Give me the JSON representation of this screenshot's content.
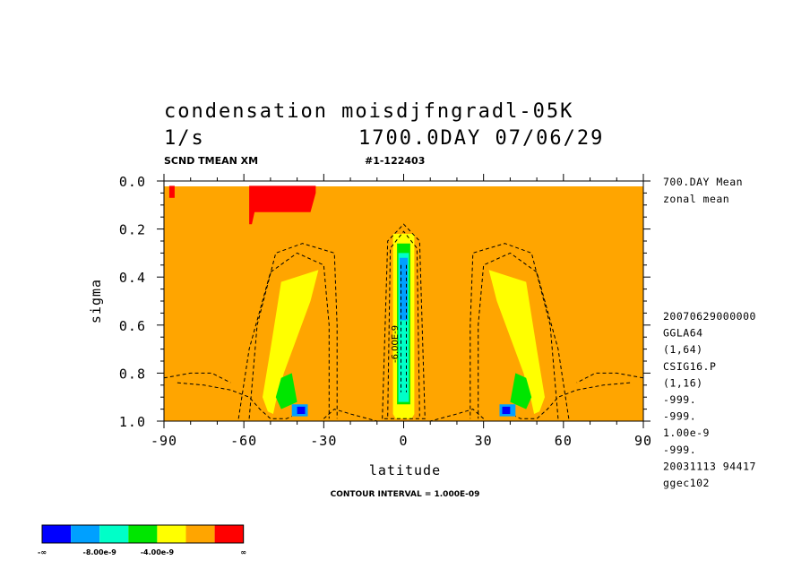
{
  "header": {
    "title_left": "condensation moisdjfngradl-05K",
    "units": "1/s",
    "time": "1700.0DAY 07/06/29",
    "variable_code": "SCND TMEAN XM",
    "run_id": "#1-122403"
  },
  "side_notes": {
    "mean": "700.DAY Mean",
    "zonal": "zonal mean",
    "info": [
      "20070629000000",
      "GGLA64",
      "(1,64)",
      "CSIG16.P",
      "(1,16)",
      "-999.",
      "-999.",
      "1.00e-9",
      "-999.",
      "20031113  94417",
      "ggec102"
    ]
  },
  "contour_interval": "CONTOUR INTERVAL = 1.000E-09",
  "contour_label": "-6.00E-9",
  "colorbar": {
    "colors": [
      "#0000ff",
      "#00a0ff",
      "#00ffc8",
      "#00e600",
      "#ffff00",
      "#ffa500",
      "#ff0000"
    ],
    "labels": [
      "-∞",
      "-8.00e-9",
      "-4.00e-9",
      "∞"
    ]
  },
  "chart_data": {
    "type": "heatmap",
    "xlabel": "latitude",
    "ylabel": "sigma",
    "xlim": [
      -90,
      90
    ],
    "ylim": [
      1.0,
      0.0
    ],
    "xticks": [
      -90,
      -60,
      -30,
      0,
      30,
      60,
      90
    ],
    "xtick_labels": [
      "-90",
      "-60",
      "-30",
      "0",
      "30",
      "60",
      "90"
    ],
    "yticks": [
      0.0,
      0.2,
      0.4,
      0.6,
      0.8,
      1.0
    ],
    "ytick_labels": [
      "0.0",
      "0.2",
      "0.4",
      "0.6",
      "0.8",
      "1.0"
    ],
    "background_color": "#ffa500",
    "regions": [
      {
        "color": "#ffff00",
        "lat": [
          -32,
          -35,
          -45,
          -48,
          -49,
          -51,
          -53,
          -50,
          -46
        ],
        "sigma": [
          0.37,
          0.5,
          0.8,
          0.92,
          0.97,
          0.96,
          0.9,
          0.7,
          0.42
        ]
      },
      {
        "color": "#ffff00",
        "lat": [
          32,
          35,
          45,
          48,
          49,
          51,
          53,
          50,
          46
        ],
        "sigma": [
          0.37,
          0.5,
          0.8,
          0.92,
          0.97,
          0.96,
          0.9,
          0.7,
          0.42
        ]
      },
      {
        "color": "#ffff00",
        "lat": [
          -4,
          4,
          4,
          3,
          -3,
          -4
        ],
        "sigma": [
          0.22,
          0.22,
          0.97,
          0.99,
          0.99,
          0.97
        ]
      },
      {
        "color": "#00e600",
        "lat": [
          -42,
          -46,
          -48,
          -46,
          -40
        ],
        "sigma": [
          0.8,
          0.82,
          0.9,
          0.95,
          0.92
        ]
      },
      {
        "color": "#00e600",
        "lat": [
          42,
          46,
          48,
          46,
          40
        ],
        "sigma": [
          0.8,
          0.82,
          0.9,
          0.95,
          0.92
        ]
      },
      {
        "color": "#00e600",
        "lat": [
          -2.5,
          2.5,
          2.5,
          -2.5
        ],
        "sigma": [
          0.26,
          0.26,
          0.93,
          0.93
        ]
      },
      {
        "color": "#00ffc8",
        "lat": [
          -2,
          2,
          2,
          -2
        ],
        "sigma": [
          0.3,
          0.3,
          0.92,
          0.92
        ]
      },
      {
        "color": "#00a0ff",
        "lat": [
          -1.5,
          1.5,
          1.5,
          -1.5
        ],
        "sigma": [
          0.32,
          0.32,
          0.58,
          0.58
        ]
      },
      {
        "color": "#00a0ff",
        "lat": [
          -42,
          -36,
          -36,
          -42
        ],
        "sigma": [
          0.93,
          0.93,
          0.98,
          0.98
        ]
      },
      {
        "color": "#00a0ff",
        "lat": [
          36,
          42,
          42,
          36
        ],
        "sigma": [
          0.93,
          0.93,
          0.98,
          0.98
        ]
      },
      {
        "color": "#0000ff",
        "lat": [
          -40,
          -37,
          -37,
          -40
        ],
        "sigma": [
          0.94,
          0.94,
          0.97,
          0.97
        ]
      },
      {
        "color": "#0000ff",
        "lat": [
          37,
          40,
          40,
          37
        ],
        "sigma": [
          0.94,
          0.94,
          0.97,
          0.97
        ]
      },
      {
        "color": "#ff0000",
        "lat": [
          -58,
          -33,
          -33,
          -35,
          -56,
          -57,
          -58
        ],
        "sigma": [
          0.02,
          0.02,
          0.05,
          0.13,
          0.13,
          0.18,
          0.18
        ]
      },
      {
        "color": "#ff0000",
        "lat": [
          -88,
          -86,
          -86,
          -88
        ],
        "sigma": [
          0.02,
          0.02,
          0.07,
          0.07
        ]
      }
    ],
    "contours": [
      {
        "lat": [
          -85,
          -75,
          -65,
          -58,
          -54,
          -50,
          -44,
          -42
        ],
        "sigma": [
          0.84,
          0.85,
          0.87,
          0.9,
          0.95,
          0.99,
          0.99,
          0.98
        ]
      },
      {
        "lat": [
          -90,
          -80,
          -72,
          -65
        ],
        "sigma": [
          0.82,
          0.8,
          0.8,
          0.84
        ]
      },
      {
        "lat": [
          -62,
          -58,
          -50,
          -40,
          -30,
          -28,
          -28
        ],
        "sigma": [
          0.99,
          0.7,
          0.38,
          0.3,
          0.35,
          0.6,
          0.99
        ]
      },
      {
        "lat": [
          -58,
          -55,
          -48,
          -38,
          -26,
          -25,
          -25
        ],
        "sigma": [
          0.99,
          0.6,
          0.3,
          0.26,
          0.3,
          0.6,
          0.99
        ]
      },
      {
        "lat": [
          -30,
          -26,
          -20,
          -10
        ],
        "sigma": [
          0.99,
          0.95,
          0.97,
          1.0
        ]
      },
      {
        "lat": [
          90,
          80,
          72,
          65
        ],
        "sigma": [
          0.82,
          0.8,
          0.8,
          0.84
        ]
      },
      {
        "lat": [
          85,
          75,
          65,
          58,
          54,
          50,
          44,
          42
        ],
        "sigma": [
          0.84,
          0.85,
          0.87,
          0.9,
          0.95,
          0.99,
          0.99,
          0.98
        ]
      },
      {
        "lat": [
          62,
          58,
          50,
          40,
          30,
          28,
          28
        ],
        "sigma": [
          0.99,
          0.7,
          0.38,
          0.3,
          0.35,
          0.6,
          0.99
        ]
      },
      {
        "lat": [
          58,
          55,
          48,
          38,
          26,
          25,
          25
        ],
        "sigma": [
          0.99,
          0.6,
          0.3,
          0.26,
          0.3,
          0.6,
          0.99
        ]
      },
      {
        "lat": [
          30,
          26,
          20,
          10
        ],
        "sigma": [
          0.99,
          0.95,
          0.97,
          1.0
        ]
      },
      {
        "lat": [
          -8,
          -6,
          0,
          6,
          8,
          8,
          -8
        ],
        "sigma": [
          0.99,
          0.25,
          0.18,
          0.25,
          0.99,
          0.99,
          0.99
        ]
      },
      {
        "lat": [
          -6,
          -5,
          0,
          5,
          6
        ],
        "sigma": [
          0.98,
          0.28,
          0.21,
          0.28,
          0.98
        ]
      },
      {
        "lat": [
          -1,
          -1
        ],
        "sigma": [
          0.35,
          0.88
        ]
      },
      {
        "lat": [
          1,
          1
        ],
        "sigma": [
          0.35,
          0.88
        ]
      }
    ]
  }
}
